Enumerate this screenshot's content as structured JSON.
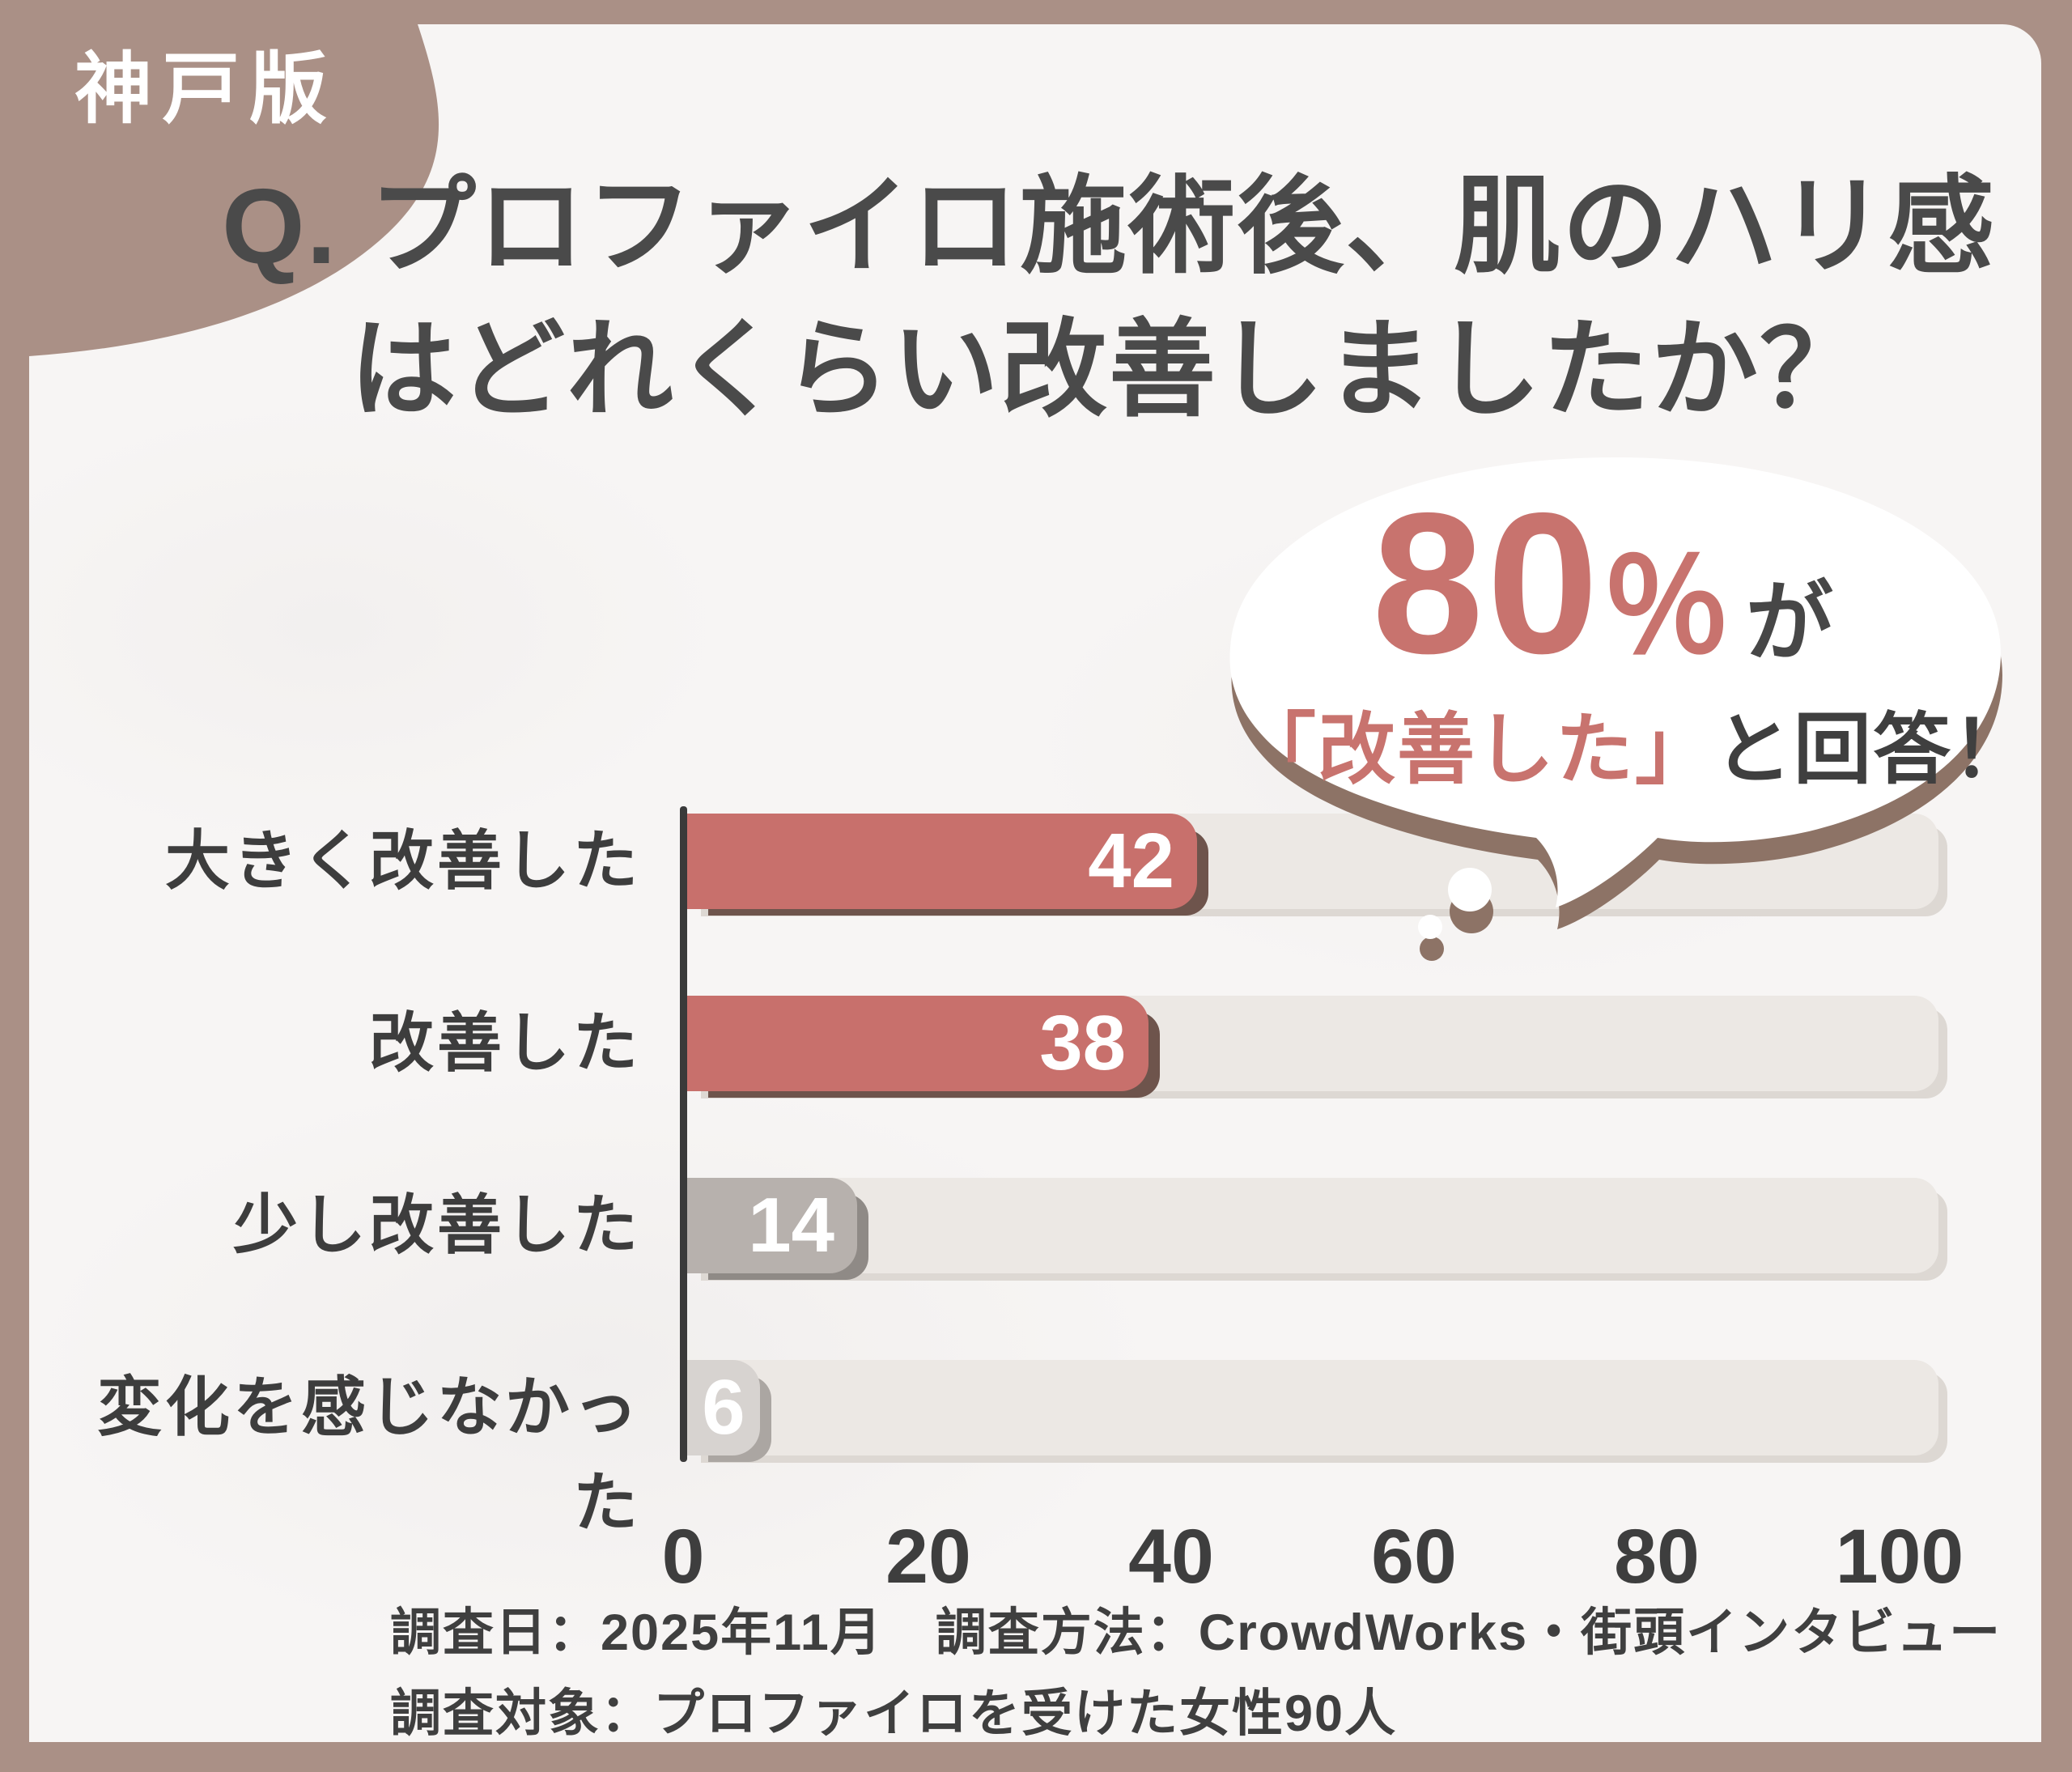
{
  "badge": {
    "label": "神戸版"
  },
  "title": {
    "line1": "Q. プロファイロ施術後、肌のハリ感",
    "line2": "はどれくらい改善しましたか？"
  },
  "callout": {
    "percent": "80",
    "percent_sign": "％",
    "suffix": "が",
    "quote": "「改善した」",
    "answer": "と回答！"
  },
  "chart_data": {
    "type": "bar",
    "orientation": "horizontal",
    "title": "プロファイロ施術後の肌のハリ感の改善度",
    "categories": [
      "大きく改善した",
      "改善した",
      "少し改善した",
      "変化を感じなかった"
    ],
    "values": [
      42,
      38,
      14,
      6
    ],
    "xlabel": "",
    "ylabel": "",
    "xlim": [
      0,
      100
    ],
    "xticks": [
      0,
      20,
      40,
      60,
      80,
      100
    ],
    "grid": false,
    "legend": false,
    "bar_colors": [
      "#c8706c",
      "#c8706c",
      "#b7b1ad",
      "#d7d3d0"
    ],
    "bar_edge_colors": [
      "#6e544c",
      "#6e544c",
      "#8f8a86",
      "#aba6a2"
    ],
    "track_color": "#ece8e4",
    "value_label_color": "#ffffff"
  },
  "footer": {
    "line1": "調査日：2025年11月　調査方法：CrowdWorks・街頭インタビュー",
    "line2": "調査対象：プロファイロを受けた女性90人"
  },
  "colors": {
    "frame_brown": "#aa9086",
    "content_bg": "#f7f5f4",
    "accent_pink": "#c8736e",
    "text_dark": "#474747",
    "axis": "#3a3a3a",
    "bubble_shadow": "#8d7366"
  }
}
